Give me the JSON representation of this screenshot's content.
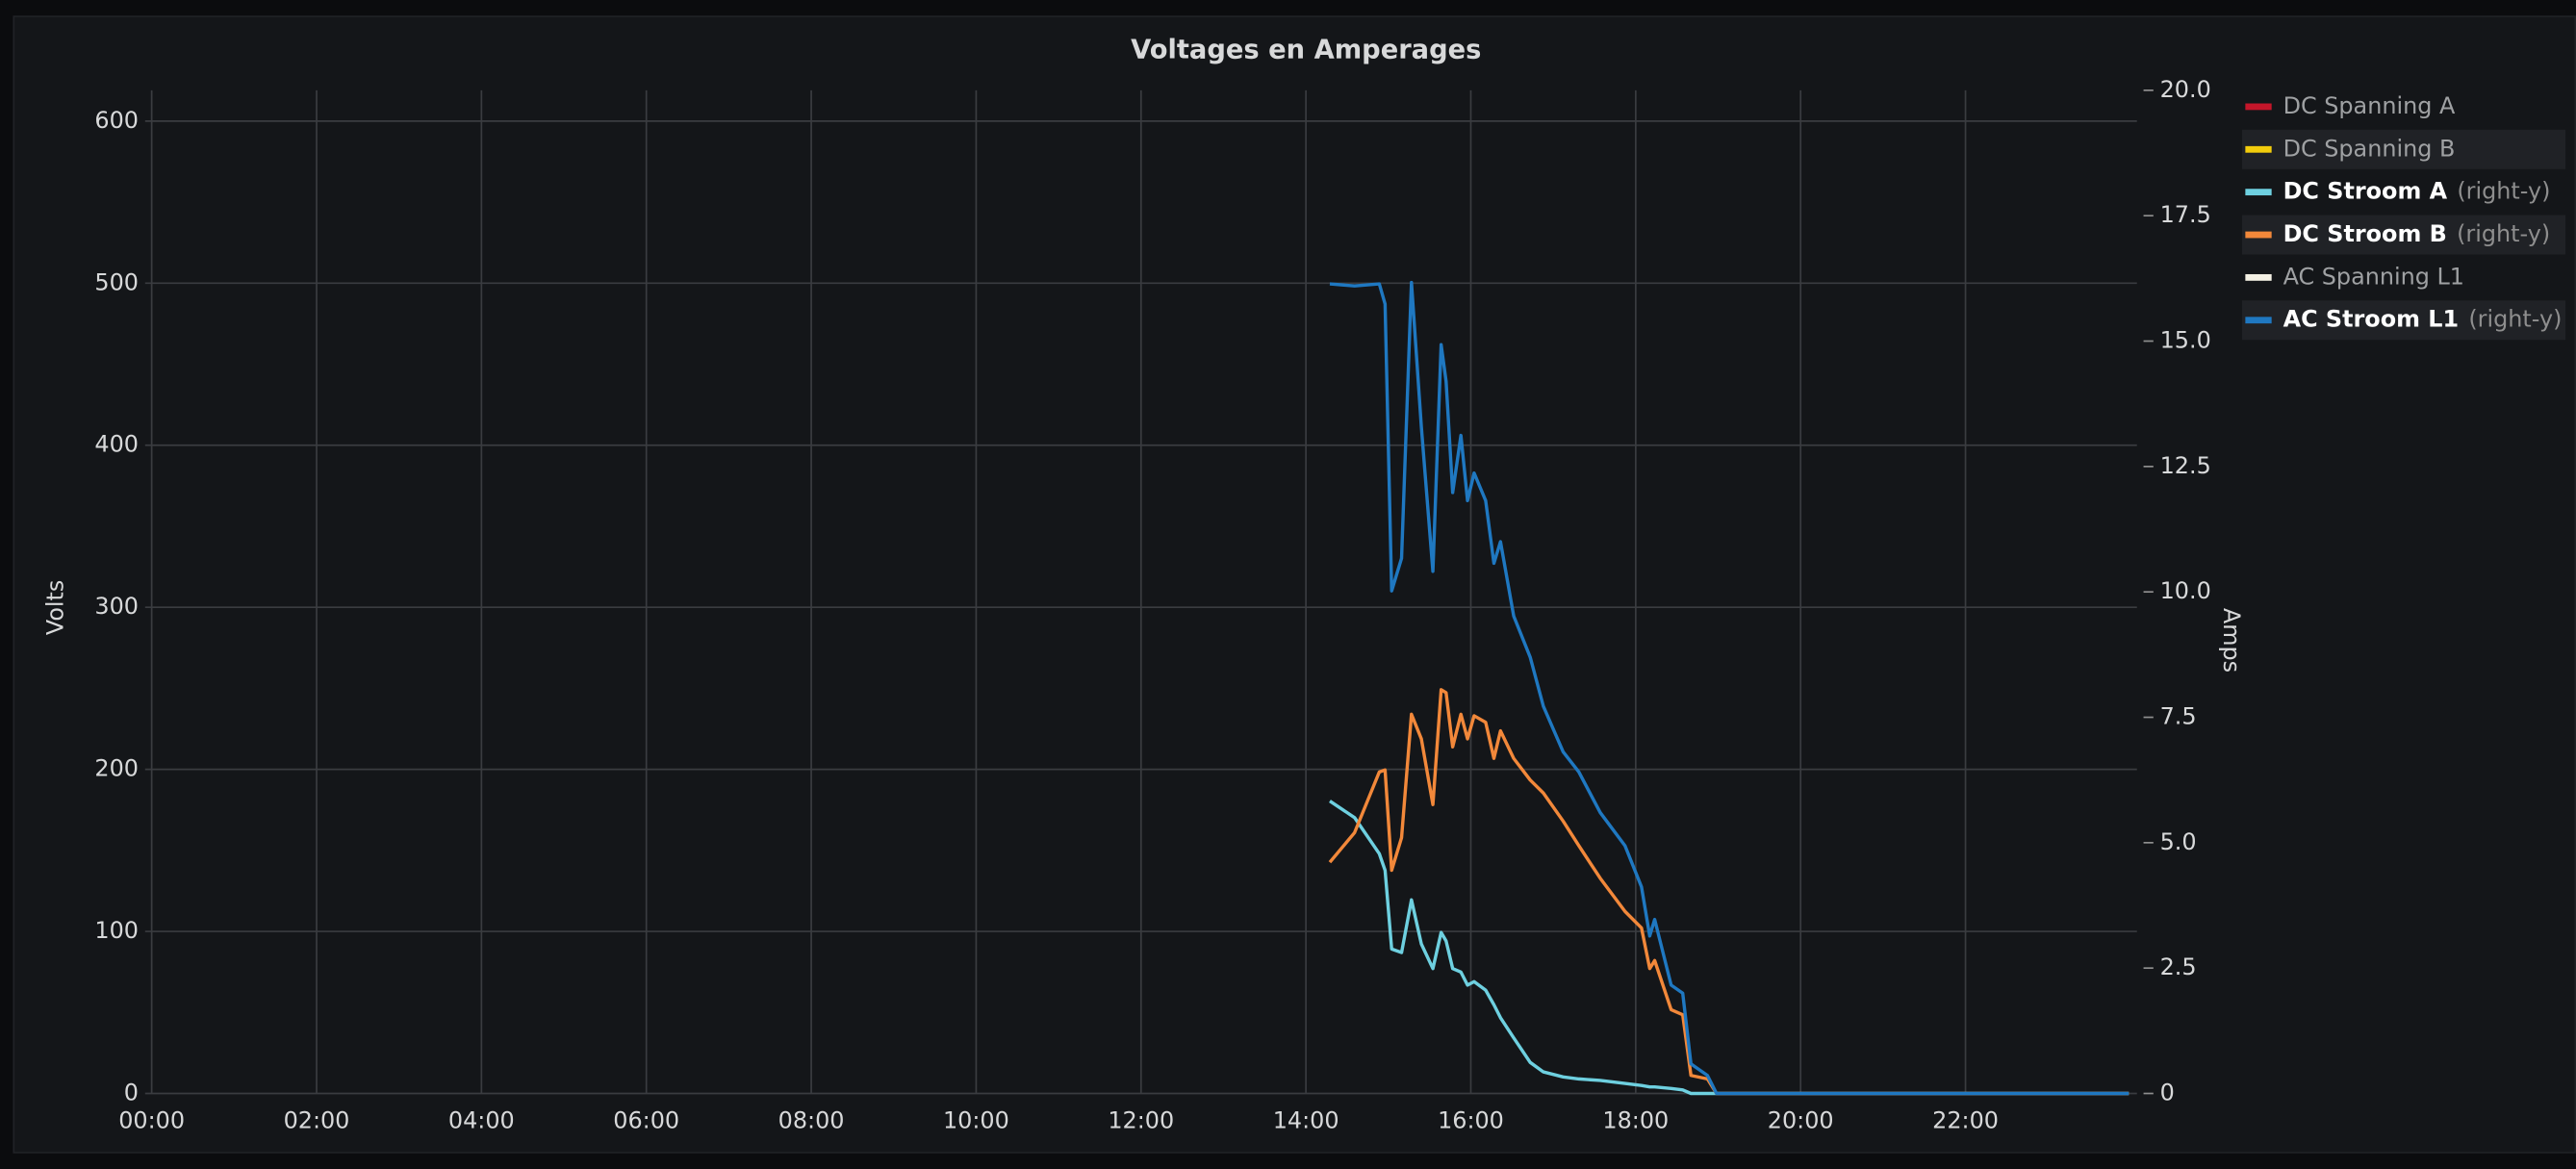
{
  "chart_data": {
    "type": "line",
    "title": "Voltages en Amperages",
    "ylabel": "Volts",
    "y2label": "Amps",
    "xlim": [
      0,
      24
    ],
    "xticks": [
      {
        "value": 0,
        "label": "00:00"
      },
      {
        "value": 2,
        "label": "02:00"
      },
      {
        "value": 4,
        "label": "04:00"
      },
      {
        "value": 6,
        "label": "06:00"
      },
      {
        "value": 8,
        "label": "08:00"
      },
      {
        "value": 10,
        "label": "10:00"
      },
      {
        "value": 12,
        "label": "12:00"
      },
      {
        "value": 14,
        "label": "14:00"
      },
      {
        "value": 16,
        "label": "16:00"
      },
      {
        "value": 18,
        "label": "18:00"
      },
      {
        "value": 20,
        "label": "20:00"
      },
      {
        "value": 22,
        "label": "22:00"
      }
    ],
    "ylim": [
      0,
      619
    ],
    "yticks": [
      0,
      100,
      200,
      300,
      400,
      500,
      600
    ],
    "y2lim": [
      0,
      20
    ],
    "y2ticks": [
      0,
      2.5,
      {
        "value": 5,
        "label": "5.0"
      },
      7.5,
      {
        "value": 10,
        "label": "10.0"
      },
      12.5,
      {
        "value": 15,
        "label": "15.0"
      },
      17.5,
      {
        "value": 20,
        "label": "20.0"
      }
    ],
    "grid": true,
    "legend": "right",
    "x": [
      14.29,
      14.59,
      14.89,
      14.96,
      15.04,
      15.16,
      15.28,
      15.4,
      15.54,
      15.64,
      15.7,
      15.78,
      15.88,
      15.96,
      16.04,
      16.18,
      16.28,
      16.36,
      16.52,
      16.72,
      16.88,
      17.12,
      17.31,
      17.57,
      17.87,
      18.07,
      18.17,
      18.23,
      18.43,
      18.57,
      18.67,
      18.87,
      18.98,
      23.98
    ],
    "series": [
      {
        "name": "DC Spanning A",
        "color": "#c4162a",
        "hidden": true,
        "values": [
          null,
          null,
          null,
          null,
          null,
          null,
          null,
          null,
          null,
          null,
          null,
          null,
          null,
          null,
          null,
          null,
          null,
          null,
          null,
          null,
          null,
          null,
          null,
          null,
          null,
          null,
          null,
          null,
          null,
          null,
          null,
          null,
          null,
          null
        ]
      },
      {
        "name": "DC Spanning B",
        "color": "#f2cc0c",
        "hidden": true,
        "values": [
          null,
          null,
          null,
          null,
          null,
          null,
          null,
          null,
          null,
          null,
          null,
          null,
          null,
          null,
          null,
          null,
          null,
          null,
          null,
          null,
          null,
          null,
          null,
          null,
          null,
          null,
          null,
          null,
          null,
          null,
          null,
          null,
          null,
          null
        ]
      },
      {
        "name": "DC Stroom A",
        "legend_suffix": "(right-y)",
        "axis": "y2",
        "color": "#6ed0e0",
        "values": [
          5.83,
          5.5,
          4.78,
          4.45,
          2.88,
          2.81,
          3.86,
          2.98,
          2.49,
          3.21,
          3.04,
          2.49,
          2.42,
          2.16,
          2.23,
          2.06,
          1.77,
          1.51,
          1.11,
          0.62,
          0.43,
          0.33,
          0.29,
          0.26,
          0.2,
          0.16,
          0.13,
          0.13,
          0.1,
          0.07,
          0,
          0,
          0,
          0
        ]
      },
      {
        "name": "DC Stroom B",
        "legend_suffix": "(right-y)",
        "axis": "y2",
        "color": "#f2883a",
        "values": [
          4.61,
          5.2,
          6.41,
          6.45,
          4.45,
          5.1,
          7.56,
          7.07,
          5.76,
          8.05,
          7.99,
          6.91,
          7.56,
          7.07,
          7.53,
          7.4,
          6.68,
          7.23,
          6.68,
          6.25,
          5.99,
          5.43,
          4.94,
          4.29,
          3.63,
          3.3,
          2.49,
          2.65,
          1.67,
          1.57,
          0.36,
          0.29,
          0,
          0
        ]
      },
      {
        "name": "AC Spanning L1",
        "color": "#f4f1e4",
        "hidden": true,
        "values": [
          null,
          null,
          null,
          null,
          null,
          null,
          null,
          null,
          null,
          null,
          null,
          null,
          null,
          null,
          null,
          null,
          null,
          null,
          null,
          null,
          null,
          null,
          null,
          null,
          null,
          null,
          null,
          null,
          null,
          null,
          null,
          null,
          null,
          null
        ]
      },
      {
        "name": "AC Stroom L1",
        "legend_suffix": "(right-y)",
        "axis": "y2",
        "color": "#1f78c1",
        "values": [
          16.14,
          16.1,
          16.14,
          15.74,
          10.02,
          10.67,
          16.17,
          13.29,
          10.41,
          14.93,
          14.2,
          11.98,
          13.12,
          11.82,
          12.37,
          11.82,
          10.57,
          11.0,
          9.52,
          8.7,
          7.72,
          6.81,
          6.41,
          5.6,
          4.94,
          4.12,
          3.14,
          3.47,
          2.16,
          2.0,
          0.59,
          0.36,
          0,
          0
        ]
      }
    ]
  }
}
